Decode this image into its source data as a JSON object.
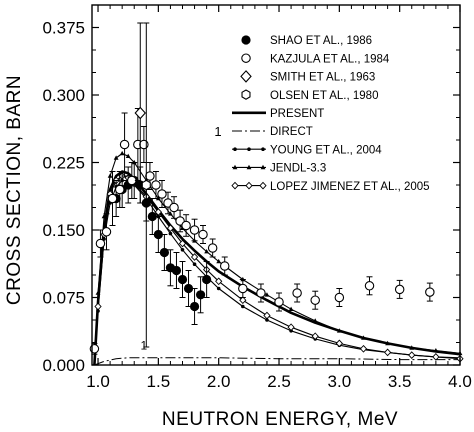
{
  "chart_data": {
    "type": "scatter",
    "xlabel": "NEUTRON ENERGY, MeV",
    "ylabel": "CROSS SECTION, BARN",
    "xlim": [
      0.95,
      4.0
    ],
    "ylim": [
      0.0,
      0.4
    ],
    "xticks": [
      1.0,
      1.5,
      2.0,
      2.5,
      3.0,
      3.5,
      4.0
    ],
    "xtick_labels": [
      "1.0",
      "1.5",
      "2.0",
      "2.5",
      "3.0",
      "3.5",
      "4.0"
    ],
    "yticks": [
      0.0,
      0.075,
      0.15,
      0.225,
      0.3,
      0.375
    ],
    "ytick_labels": [
      "0.000",
      "0.075",
      "0.150",
      "0.225",
      "0.300",
      "0.375"
    ],
    "grid": false,
    "legend_position": "top-right",
    "annotations": [
      {
        "text": "1",
        "x": 1.38,
        "y": 0.013
      },
      {
        "text": "1",
        "target": "DIRECT"
      }
    ],
    "series": [
      {
        "name": "SHAO ET AL., 1986",
        "kind": "points",
        "marker": "filled-circle",
        "x": [
          1.15,
          1.2,
          1.25,
          1.3,
          1.35,
          1.4,
          1.45,
          1.5,
          1.55,
          1.6,
          1.65,
          1.7,
          1.75,
          1.8,
          1.85,
          1.9
        ],
        "y": [
          0.185,
          0.195,
          0.2,
          0.205,
          0.2,
          0.18,
          0.165,
          0.145,
          0.125,
          0.108,
          0.105,
          0.095,
          0.085,
          0.065,
          0.078,
          0.095
        ],
        "err": [
          0.02,
          0.02,
          0.02,
          0.02,
          0.02,
          0.02,
          0.02,
          0.02,
          0.02,
          0.02,
          0.02,
          0.02,
          0.02,
          0.02,
          0.02,
          0.02
        ]
      },
      {
        "name": "KAZJULA ET AL., 1984",
        "kind": "points",
        "marker": "open-circle",
        "x": [
          0.97,
          1.02,
          1.07,
          1.12,
          1.18,
          1.22,
          1.28,
          1.33,
          1.38,
          1.43,
          1.48,
          1.53,
          1.58,
          1.63,
          1.68,
          1.73,
          1.8,
          1.87,
          1.95,
          2.05,
          2.2,
          2.35,
          2.5,
          2.65,
          2.8,
          3.0,
          3.25,
          3.5,
          3.75
        ],
        "y": [
          0.018,
          0.135,
          0.148,
          0.185,
          0.195,
          0.245,
          0.205,
          0.245,
          0.245,
          0.21,
          0.2,
          0.19,
          0.18,
          0.175,
          0.16,
          0.155,
          0.15,
          0.145,
          0.13,
          0.11,
          0.085,
          0.08,
          0.07,
          0.08,
          0.072,
          0.075,
          0.088,
          0.084,
          0.081
        ],
        "err": [
          0.006,
          0.015,
          0.02,
          0.03,
          0.02,
          0.035,
          0.02,
          0.04,
          0.02,
          0.015,
          0.015,
          0.015,
          0.012,
          0.012,
          0.012,
          0.012,
          0.012,
          0.01,
          0.01,
          0.01,
          0.01,
          0.01,
          0.01,
          0.01,
          0.01,
          0.01,
          0.01,
          0.01,
          0.01
        ]
      },
      {
        "name": "SMITH ET AL., 1963",
        "kind": "points",
        "marker": "open-diamond",
        "x": [
          1.35
        ],
        "y": [
          0.28
        ],
        "err": [
          0.1
        ]
      },
      {
        "name": "OLSEN ET AL., 1980",
        "kind": "points",
        "marker": "open-hexagon",
        "x": [
          1.4
        ],
        "y": [
          0.2
        ],
        "err": [
          0.18
        ]
      },
      {
        "name": "PRESENT",
        "kind": "line",
        "style": "thick-solid",
        "x": [
          0.97,
          1.0,
          1.05,
          1.1,
          1.15,
          1.2,
          1.25,
          1.3,
          1.4,
          1.5,
          1.6,
          1.7,
          1.8,
          1.9,
          2.0,
          2.2,
          2.4,
          2.6,
          2.8,
          3.0,
          3.2,
          3.4,
          3.6,
          3.8,
          4.0
        ],
        "y": [
          0.0,
          0.07,
          0.15,
          0.195,
          0.21,
          0.215,
          0.213,
          0.207,
          0.19,
          0.172,
          0.155,
          0.14,
          0.127,
          0.115,
          0.104,
          0.087,
          0.072,
          0.058,
          0.047,
          0.038,
          0.03,
          0.024,
          0.019,
          0.015,
          0.012
        ]
      },
      {
        "name": "DIRECT",
        "kind": "line",
        "style": "dash-dot",
        "x": [
          0.97,
          1.05,
          1.15,
          1.25,
          1.4,
          1.6,
          2.0,
          2.5,
          3.0,
          3.5,
          4.0
        ],
        "y": [
          0.0,
          0.004,
          0.007,
          0.008,
          0.008,
          0.008,
          0.008,
          0.007,
          0.007,
          0.006,
          0.006
        ]
      },
      {
        "name": "YOUNG ET AL., 2004",
        "kind": "line",
        "style": "solid-with-dots",
        "x": [
          0.97,
          1.0,
          1.05,
          1.1,
          1.15,
          1.2,
          1.25,
          1.3,
          1.4,
          1.5,
          1.6,
          1.7,
          1.8,
          1.9,
          2.0,
          2.2,
          2.4,
          2.6,
          2.8,
          3.0,
          3.2,
          3.4,
          3.6,
          3.8,
          4.0
        ],
        "y": [
          0.0,
          0.06,
          0.14,
          0.18,
          0.198,
          0.205,
          0.205,
          0.2,
          0.185,
          0.165,
          0.146,
          0.128,
          0.112,
          0.098,
          0.085,
          0.065,
          0.05,
          0.038,
          0.029,
          0.022,
          0.017,
          0.014,
          0.011,
          0.009,
          0.008
        ]
      },
      {
        "name": "JENDL-3.3",
        "kind": "line",
        "style": "solid-with-triangles",
        "x": [
          0.97,
          1.0,
          1.05,
          1.1,
          1.15,
          1.2,
          1.25,
          1.3,
          1.4,
          1.5,
          1.6,
          1.7,
          1.8,
          1.9,
          2.0,
          2.2,
          2.4,
          2.6,
          2.8,
          3.0,
          3.2,
          3.4,
          3.6,
          3.8,
          4.0
        ],
        "y": [
          0.0,
          0.08,
          0.165,
          0.21,
          0.23,
          0.235,
          0.232,
          0.225,
          0.205,
          0.185,
          0.168,
          0.152,
          0.138,
          0.126,
          0.115,
          0.095,
          0.078,
          0.062,
          0.049,
          0.038,
          0.03,
          0.024,
          0.019,
          0.016,
          0.013
        ]
      },
      {
        "name": "LOPEZ JIMENEZ ET AL., 2005",
        "kind": "line",
        "style": "solid-with-open-diamonds",
        "x": [
          0.97,
          1.0,
          1.05,
          1.1,
          1.15,
          1.2,
          1.25,
          1.3,
          1.4,
          1.5,
          1.6,
          1.7,
          1.8,
          1.9,
          2.0,
          2.2,
          2.4,
          2.6,
          2.8,
          3.0,
          3.2,
          3.4,
          3.6,
          3.8,
          4.0
        ],
        "y": [
          0.0,
          0.065,
          0.145,
          0.19,
          0.205,
          0.21,
          0.208,
          0.202,
          0.187,
          0.17,
          0.152,
          0.135,
          0.12,
          0.106,
          0.093,
          0.072,
          0.055,
          0.042,
          0.032,
          0.024,
          0.018,
          0.014,
          0.011,
          0.009,
          0.007
        ]
      }
    ]
  }
}
